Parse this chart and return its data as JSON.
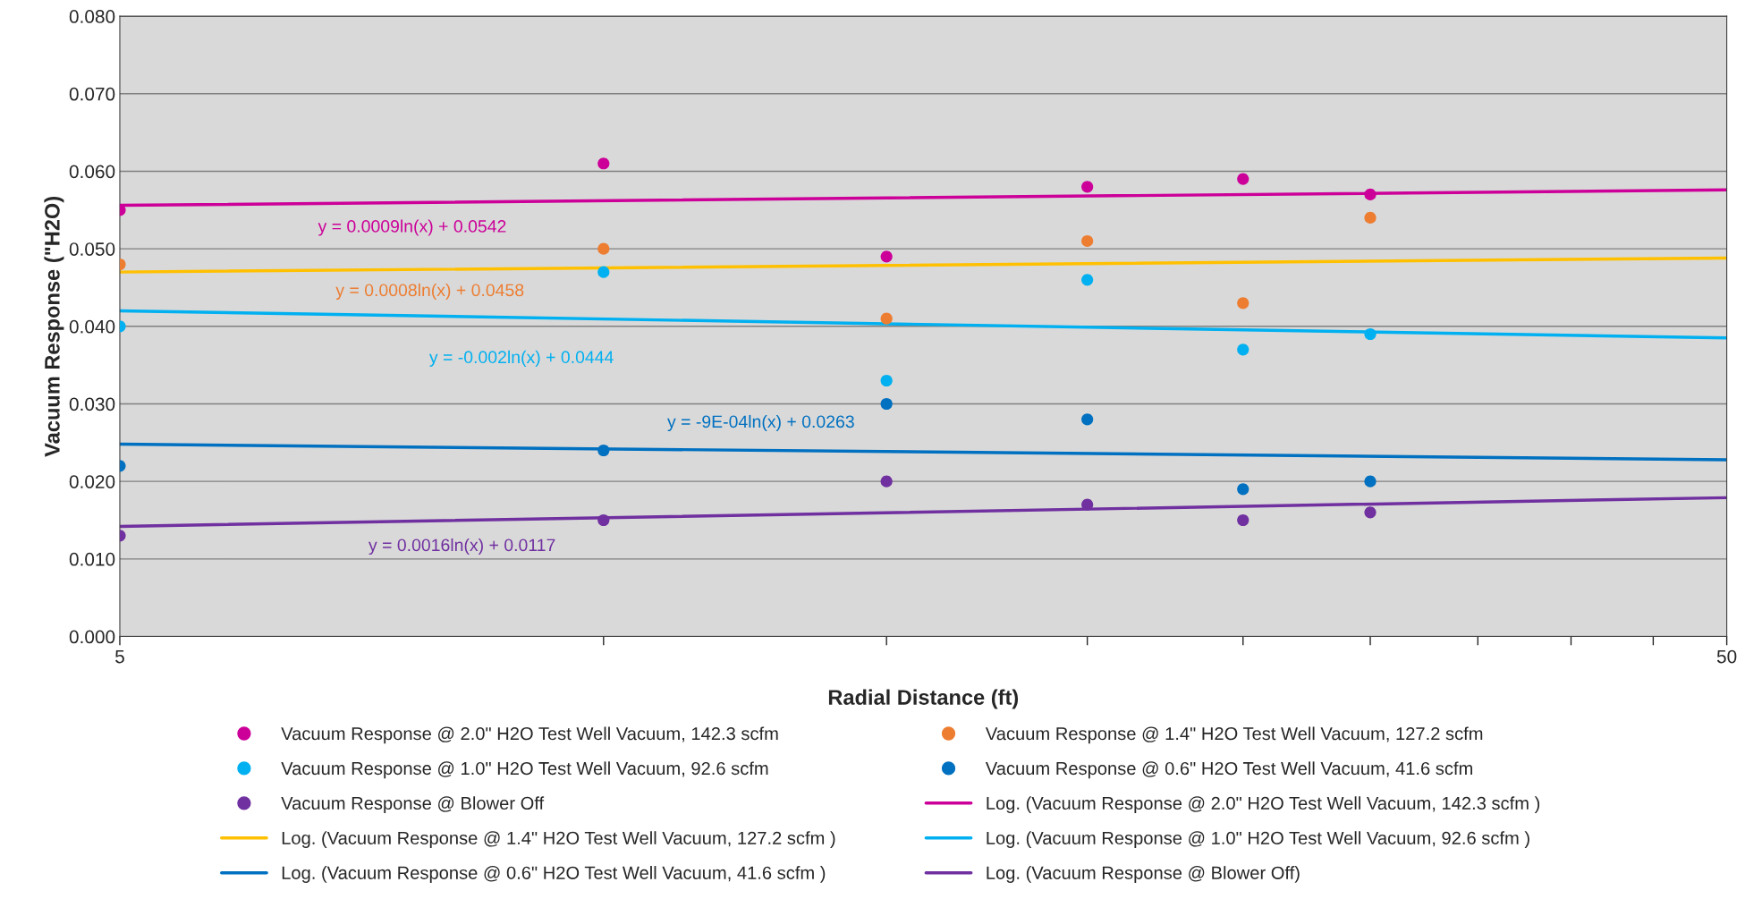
{
  "chart_data": {
    "type": "scatter",
    "xlabel": "Radial Distance (ft)",
    "ylabel": "Vacuum Response (\"H2O)",
    "log": "x",
    "xlim": [
      5,
      50
    ],
    "ylim": [
      0,
      0.08
    ],
    "xticks": [
      5,
      {
        "value": 10,
        "label": null
      },
      {
        "value": 15,
        "label": null
      },
      {
        "value": 20,
        "label": null
      },
      {
        "value": 25,
        "label": null
      },
      {
        "value": 30,
        "label": null
      },
      {
        "value": 35,
        "label": null
      },
      {
        "value": 40,
        "label": null
      },
      {
        "value": 45,
        "label": null
      },
      50
    ],
    "yticks": [
      {
        "value": 0,
        "label": "0.000"
      },
      {
        "value": 0.01,
        "label": "0.010"
      },
      {
        "value": 0.02,
        "label": "0.020"
      },
      {
        "value": 0.03,
        "label": "0.030"
      },
      {
        "value": 0.04,
        "label": "0.040"
      },
      {
        "value": 0.05,
        "label": "0.050"
      },
      {
        "value": 0.06,
        "label": "0.060"
      },
      {
        "value": 0.07,
        "label": "0.070"
      },
      {
        "value": 0.08,
        "label": "0.080"
      }
    ],
    "grid": "y",
    "legend": "bottom",
    "marker": "circle",
    "series": [
      {
        "name": "Vacuum Response @ 2.0\" H2O Test Well Vacuum, 142.3 scfm",
        "color": "#cc0099",
        "x": [
          5,
          10,
          15,
          20,
          25,
          30
        ],
        "values": [
          0.055,
          0.061,
          0.049,
          0.058,
          0.059,
          0.057
        ]
      },
      {
        "name": "Vacuum Response @ 1.4\" H2O Test Well Vacuum, 127.2 scfm",
        "color": "#ed7d31",
        "x": [
          5,
          10,
          15,
          20,
          25,
          30
        ],
        "values": [
          0.048,
          0.05,
          0.041,
          0.051,
          0.043,
          0.054
        ]
      },
      {
        "name": "Vacuum Response @ 1.0\" H2O Test Well Vacuum, 92.6 scfm",
        "color": "#00b0f0",
        "x": [
          5,
          10,
          15,
          20,
          25,
          30
        ],
        "values": [
          0.04,
          0.047,
          0.033,
          0.046,
          0.037,
          0.039
        ]
      },
      {
        "name": "Vacuum Response @ 0.6\" H2O Test Well Vacuum, 41.6 scfm",
        "color": "#0070c0",
        "x": [
          5,
          10,
          15,
          20,
          25,
          30
        ],
        "values": [
          0.022,
          0.024,
          0.03,
          0.028,
          0.019,
          0.02
        ]
      },
      {
        "name": "Vacuum Response @ Blower Off",
        "color": "#7030a0",
        "x": [
          5,
          10,
          15,
          20,
          25,
          30
        ],
        "values": [
          0.013,
          0.015,
          0.02,
          0.017,
          0.015,
          0.016
        ]
      },
      {
        "name": "Log. (Vacuum Response @ 2.0\" H2O Test Well Vacuum, 142.3 scfm )",
        "type": "line",
        "marker": "none",
        "color": "#cc0099",
        "x": [
          5,
          50
        ],
        "values": [
          0.0556,
          0.0576
        ]
      },
      {
        "name": "Log. (Vacuum Response @ 1.4\" H2O Test Well Vacuum, 127.2 scfm )",
        "type": "line",
        "marker": "none",
        "color": "#ffc000",
        "x": [
          5,
          50
        ],
        "values": [
          0.047,
          0.0488
        ]
      },
      {
        "name": "Log. (Vacuum Response @ 1.0\" H2O Test Well Vacuum, 92.6 scfm )",
        "type": "line",
        "marker": "none",
        "color": "#00b0f0",
        "x": [
          5,
          50
        ],
        "values": [
          0.042,
          0.0385
        ]
      },
      {
        "name": "Log. (Vacuum Response @ 0.6\" H2O Test Well Vacuum, 41.6 scfm )",
        "type": "line",
        "marker": "none",
        "color": "#0070c0",
        "x": [
          5,
          50
        ],
        "values": [
          0.0248,
          0.0228
        ]
      },
      {
        "name": "Log. (Vacuum Response @ Blower Off)",
        "type": "line",
        "marker": "none",
        "color": "#7030a0",
        "x": [
          5,
          50
        ],
        "values": [
          0.0142,
          0.0179
        ]
      }
    ],
    "annotations": [
      "y = 0.0009ln(x) + 0.0542",
      "y = 0.0008ln(x) + 0.0458",
      "y = -0.002ln(x) + 0.0444",
      "y = -9E-04ln(x) + 0.0263",
      "y = 0.0016ln(x) + 0.0117"
    ]
  }
}
